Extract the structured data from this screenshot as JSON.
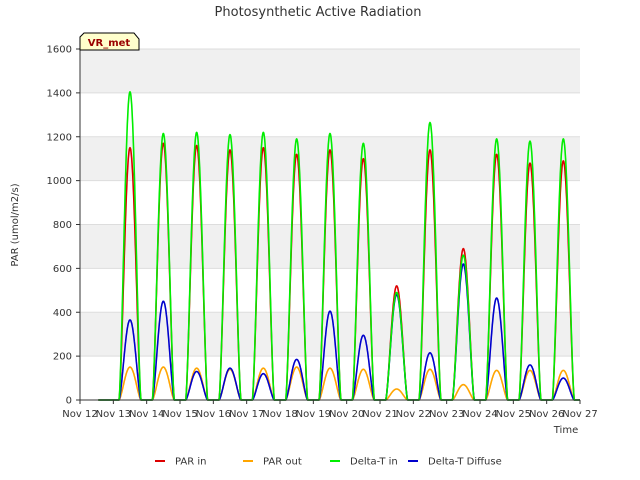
{
  "chart_data": {
    "type": "line",
    "title": "Photosynthetic Active Radiation",
    "xlabel": "Time",
    "ylabel": "PAR (umol/m2/s)",
    "ylim": [
      0,
      1600
    ],
    "yticks": [
      0,
      200,
      400,
      600,
      800,
      1000,
      1200,
      1400,
      1600
    ],
    "xlim": [
      12,
      27
    ],
    "xticks": [
      12,
      13,
      14,
      15,
      16,
      17,
      18,
      19,
      20,
      21,
      22,
      23,
      24,
      25,
      26,
      27
    ],
    "xtick_labels": [
      "Nov 12",
      "Nov 13",
      "Nov 14",
      "Nov 15",
      "Nov 16",
      "Nov 17",
      "Nov 18",
      "Nov 19",
      "Nov 20",
      "Nov 21",
      "Nov 22",
      "Nov 23",
      "Nov 24",
      "Nov 25",
      "Nov 26",
      "Nov 27"
    ],
    "grid": true,
    "station_label": "VR_met",
    "legend_position": "bottom-center",
    "day_centers": [
      13.5,
      14.5,
      15.5,
      16.5,
      17.5,
      18.5,
      19.5,
      20.5,
      21.5,
      22.5,
      23.5,
      24.5,
      25.5,
      26.5
    ],
    "series": [
      {
        "name": "PAR in",
        "color": "#dd0000",
        "daily_peaks": [
          1150,
          1170,
          1160,
          1140,
          1150,
          1120,
          1140,
          1100,
          520,
          1140,
          690,
          1120,
          1080,
          1090
        ]
      },
      {
        "name": "PAR out",
        "color": "#ffa500",
        "daily_peaks": [
          150,
          150,
          145,
          140,
          145,
          150,
          145,
          140,
          50,
          140,
          70,
          135,
          135,
          135
        ]
      },
      {
        "name": "Delta-T in",
        "color": "#00ee00",
        "daily_peaks": [
          1405,
          1215,
          1220,
          1210,
          1220,
          1190,
          1215,
          1170,
          490,
          1265,
          660,
          1190,
          1180,
          1190
        ]
      },
      {
        "name": "Delta-T Diffuse",
        "color": "#0000cc",
        "daily_peaks": [
          365,
          450,
          130,
          145,
          120,
          185,
          405,
          295,
          480,
          215,
          620,
          465,
          160,
          100
        ]
      }
    ]
  }
}
